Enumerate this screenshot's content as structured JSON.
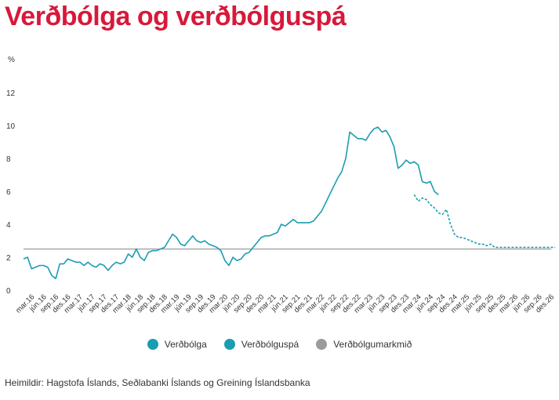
{
  "title": "Verðbólga og verðbólguspá",
  "source": "Heimildir: Hagstofa Íslands, Seðlabanki Íslands og Greining Íslandsbanka",
  "colors": {
    "title": "#d7193a",
    "actual": "#1b9db1",
    "forecast": "#1b9db1",
    "target": "#9b9b9b",
    "axis_text": "#333333"
  },
  "chart_data": {
    "type": "line",
    "ylabel": "%",
    "ylim": [
      0,
      12
    ],
    "yticks": [
      0,
      2,
      4,
      6,
      8,
      10,
      12
    ],
    "grid": false,
    "legend_position": "bottom",
    "x_labels": [
      "mar.16",
      "jún.16",
      "sep.16",
      "des.16",
      "mar.17",
      "jún.17",
      "sep.17",
      "des.17",
      "mar.18",
      "jún.18",
      "sep.18",
      "des.18",
      "mar.19",
      "jún.19",
      "sep.19",
      "des.19",
      "mar.20",
      "jún.20",
      "sep.20",
      "des.20",
      "mar.21",
      "jún.21",
      "sep.21",
      "des.21",
      "mar.22",
      "jún.22",
      "sep.22",
      "des.22",
      "mar.23",
      "jún.23",
      "sep.23",
      "des.23",
      "mar.24",
      "jún.24",
      "sep.24",
      "des.24",
      "mar.25",
      "jún.25",
      "sep.25",
      "des.25",
      "mar.26",
      "jún.26",
      "sep.26",
      "des.26"
    ],
    "series": [
      {
        "name": "Verðbólga",
        "style": "solid",
        "start": "jan.16",
        "values": [
          1.9,
          2.0,
          1.3,
          1.4,
          1.5,
          1.5,
          1.4,
          0.9,
          0.7,
          1.6,
          1.6,
          1.9,
          1.8,
          1.7,
          1.7,
          1.5,
          1.7,
          1.5,
          1.4,
          1.6,
          1.5,
          1.2,
          1.5,
          1.7,
          1.6,
          1.7,
          2.2,
          2.0,
          2.5,
          2.0,
          1.8,
          2.3,
          2.4,
          2.4,
          2.5,
          2.6,
          3.0,
          3.4,
          3.2,
          2.8,
          2.7,
          3.0,
          3.3,
          3.0,
          2.9,
          3.0,
          2.8,
          2.7,
          2.6,
          2.4,
          1.8,
          1.5,
          2.0,
          1.8,
          1.9,
          2.2,
          2.3,
          2.6,
          2.9,
          3.2,
          3.3,
          3.3,
          3.4,
          3.5,
          4.0,
          3.9,
          4.1,
          4.3,
          4.1,
          4.1,
          4.1,
          4.1,
          4.2,
          4.5,
          4.8,
          5.3,
          5.8,
          6.3,
          6.8,
          7.2,
          8.0,
          9.6,
          9.4,
          9.2,
          9.2,
          9.1,
          9.5,
          9.8,
          9.9,
          9.6,
          9.7,
          9.3,
          8.7,
          7.4,
          7.6,
          7.9,
          7.7,
          7.8,
          7.6,
          6.6,
          6.5,
          6.6,
          6.0,
          5.8
        ]
      },
      {
        "name": "Verðbólguspá",
        "style": "dashed",
        "start": "feb.24",
        "values": [
          5.8,
          5.4,
          5.6,
          5.5,
          5.2,
          5.0,
          4.7,
          4.6,
          4.9,
          4.0,
          3.4,
          3.2,
          3.2,
          3.1,
          3.0,
          2.9,
          2.8,
          2.8,
          2.7,
          2.8,
          2.6,
          2.6,
          2.6,
          2.6,
          2.6,
          2.6,
          2.6,
          2.6,
          2.6,
          2.6,
          2.6,
          2.6,
          2.6,
          2.6,
          2.6,
          2.6
        ]
      },
      {
        "name": "Verðbólgumarkmið",
        "style": "flat",
        "value": 2.5
      }
    ]
  }
}
